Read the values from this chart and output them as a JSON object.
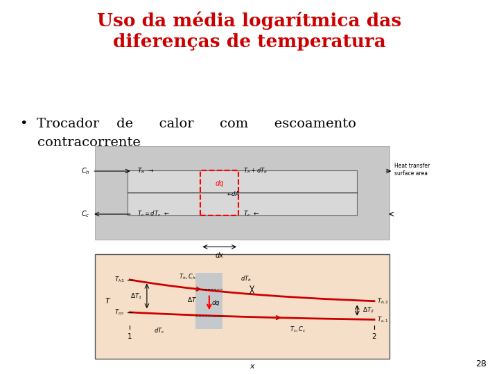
{
  "title_line1": "Uso da média logarítmica das",
  "title_line2": "diferenças de temperatura",
  "title_color": "#cc0000",
  "title_fontsize": 19,
  "bullet_text_line1": "Trocador    de      calor      com      escoamento",
  "bullet_text_line2": "contracorrente",
  "bullet_fontsize": 14,
  "bg_color": "#ffffff",
  "page_number": "28",
  "diagram1_outer_bg": "#c8c8c8",
  "diagram1_inner_bg": "#d8d8d8",
  "diagram2_bg": "#f5dfc8",
  "strip_color": "#a0b8d0",
  "hot_color": "#cc0000",
  "cold_color": "#cc0000"
}
